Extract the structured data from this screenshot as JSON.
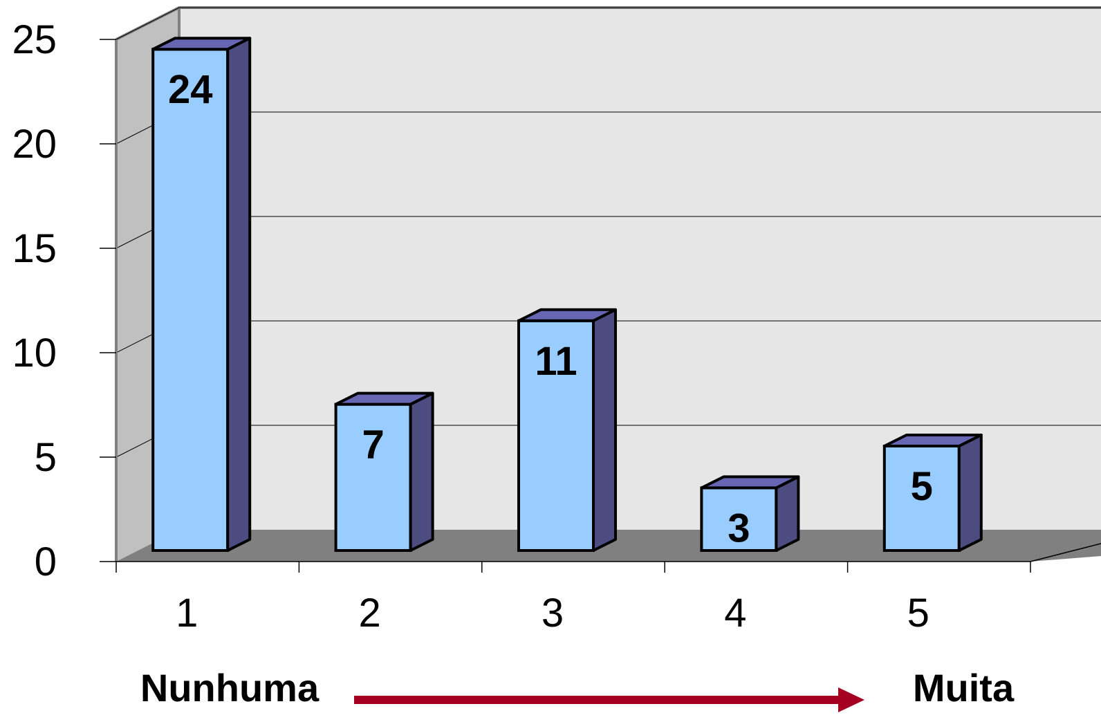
{
  "chart_data": {
    "type": "bar",
    "style": "3d-column",
    "categories": [
      "1",
      "2",
      "3",
      "4",
      "5"
    ],
    "series": [
      {
        "values": [
          24,
          7,
          11,
          3,
          5
        ]
      }
    ],
    "data_labels": [
      "24",
      "7",
      "11",
      "3",
      "5"
    ],
    "y_ticks": [
      "0",
      "5",
      "10",
      "15",
      "20",
      "25"
    ],
    "ylim": [
      0,
      25
    ],
    "ytick_step": 5,
    "grid": true,
    "legend": "none",
    "scale_annotation": {
      "left_label": "Nunhuma",
      "right_label": "Muita",
      "arrow_direction": "right"
    }
  },
  "colors": {
    "bar_front": "#99ccff",
    "bar_side": "#4c4c80",
    "bar_top": "#6666b3",
    "wall_back": "#e6e6e6",
    "wall_side": "#c0c0c0",
    "floor": "#808080",
    "arrow": "#a50021",
    "outline": "#000000"
  }
}
